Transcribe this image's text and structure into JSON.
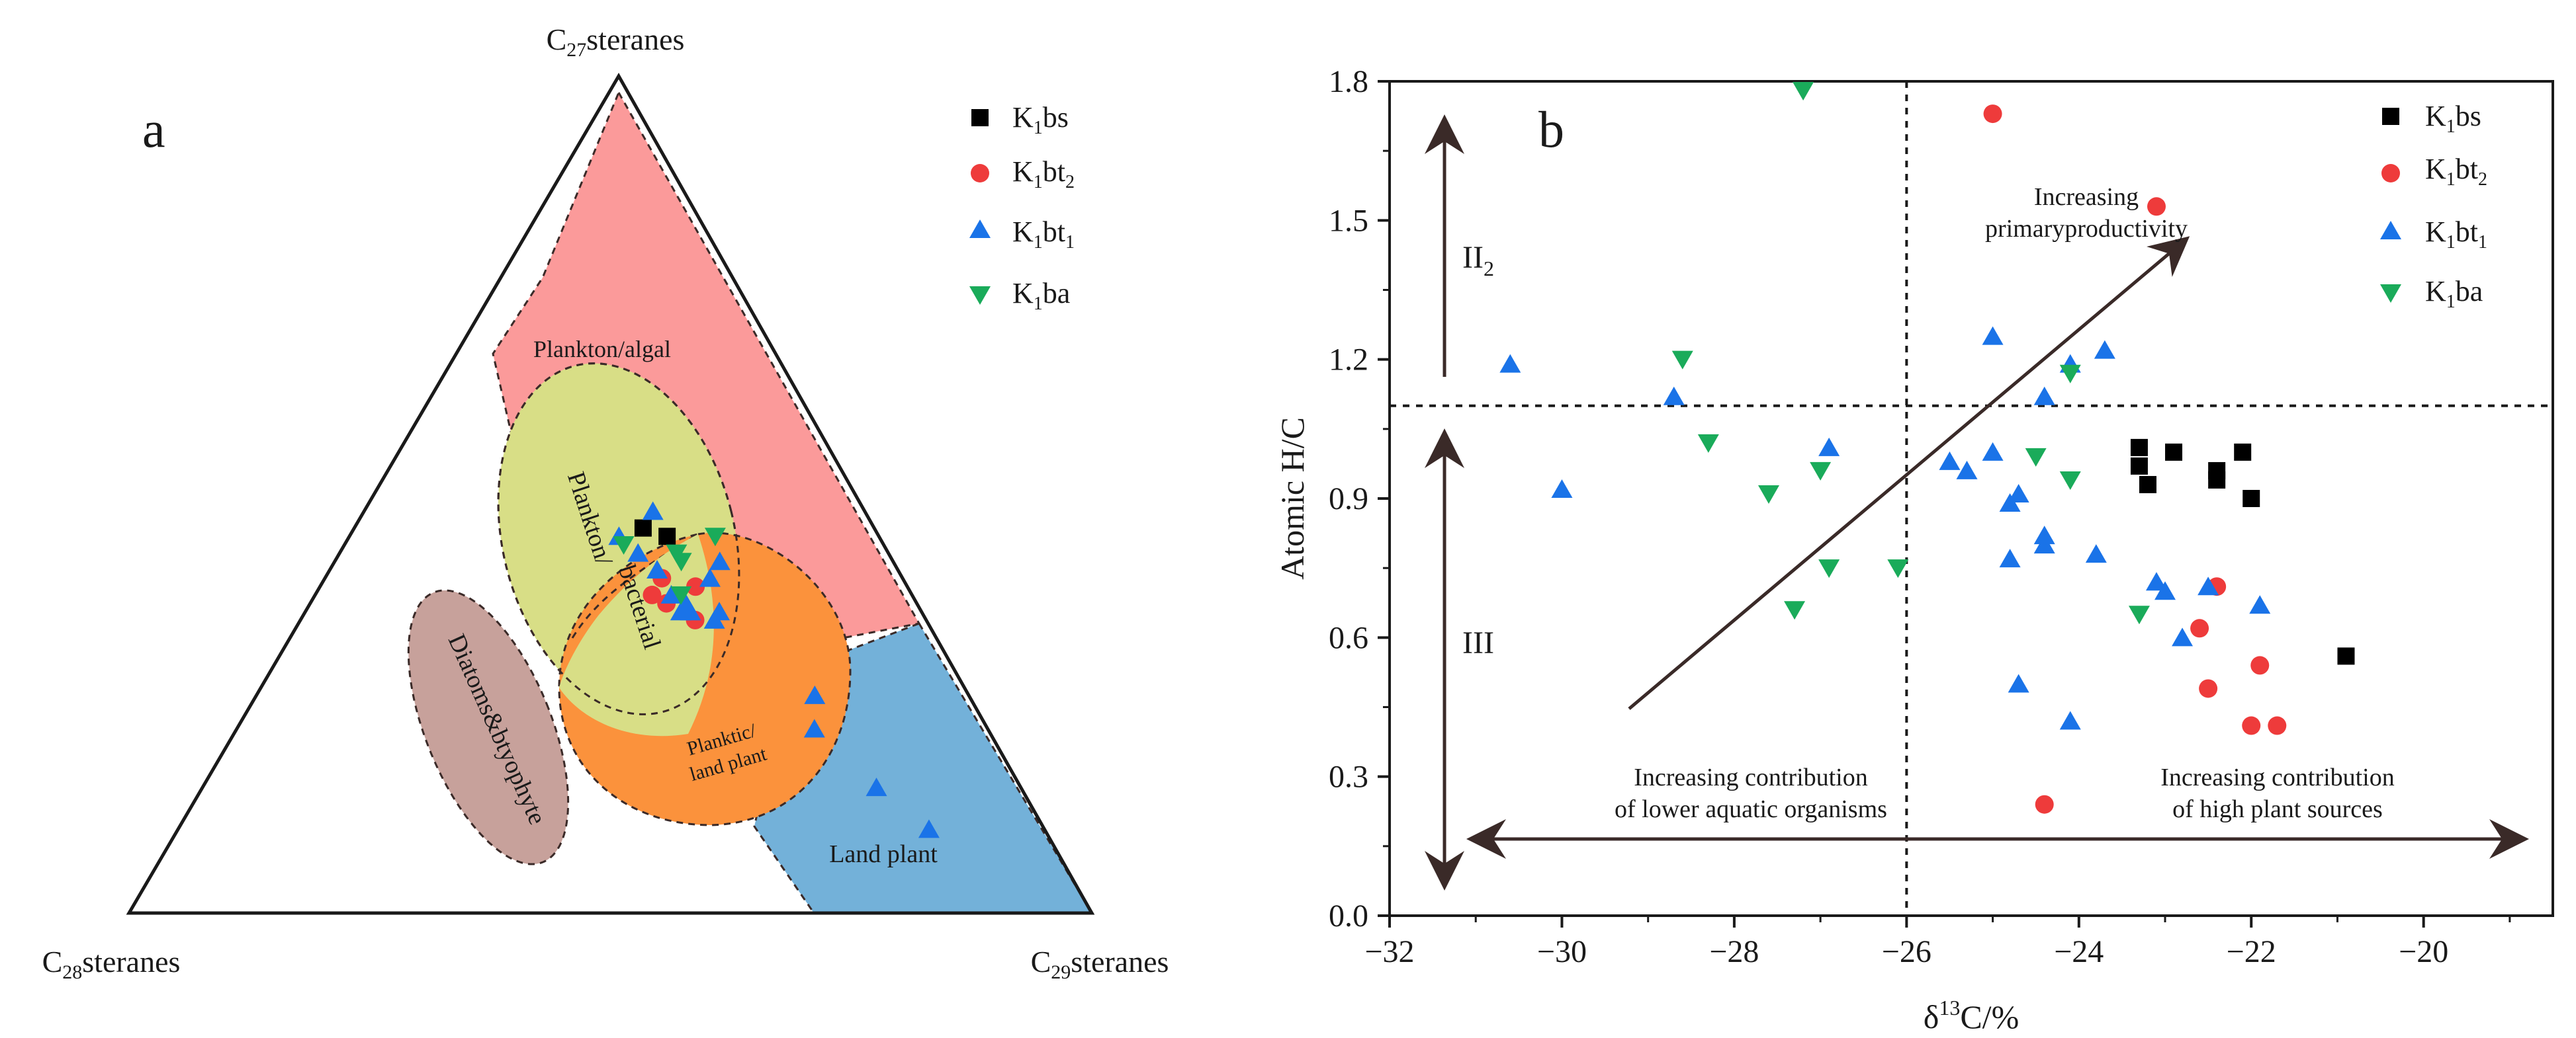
{
  "colors": {
    "K1bs": "#000000",
    "K1bt2": "#ee3b3b",
    "K1bt1": "#1a73e8",
    "K1ba": "#1aab5a",
    "plankton_algal": "#fb9a9a",
    "plankton_bacterial": "#d8de86",
    "planktic_land": "#fb923c",
    "land_plant": "#73b1d9",
    "diatoms": "#c7a19b",
    "axis": "#1a1a1a",
    "arrow": "#3a2a28"
  },
  "chart_data": [
    {
      "type": "ternary",
      "panel_label": "a",
      "vertices": {
        "top": {
          "label": "C",
          "sub": "27",
          "suffix": "steranes"
        },
        "left": {
          "label": "C",
          "sub": "28",
          "suffix": "steranes"
        },
        "right": {
          "label": "C",
          "sub": "29",
          "suffix": "steranes"
        }
      },
      "regions": [
        {
          "name": "Plankton/algal",
          "color_key": "plankton_algal"
        },
        {
          "name": "Plankton/bacterial",
          "color_key": "plankton_bacterial"
        },
        {
          "name": "Planktic/land plant",
          "color_key": "planktic_land"
        },
        {
          "name": "Land plant",
          "color_key": "land_plant"
        },
        {
          "name": "Diatoms&btyophyte",
          "color_key": "diatoms"
        }
      ],
      "region_labels": {
        "plankton_algal": "Plankton/algal",
        "plankton_bacterial_1": "Plankton/",
        "plankton_bacterial_2": "bacterial",
        "planktic_1": "Planktic/",
        "planktic_2": "land plant",
        "land_plant": "Land plant",
        "diatoms": "Diatoms&btyophyte"
      },
      "legend": [
        {
          "base": "K",
          "sub1": "1",
          "text": "bs",
          "sub2": "",
          "marker": "square",
          "color_key": "K1bs"
        },
        {
          "base": "K",
          "sub1": "1",
          "text": "bt",
          "sub2": "2",
          "marker": "circle",
          "color_key": "K1bt2"
        },
        {
          "base": "K",
          "sub1": "1",
          "text": "bt",
          "sub2": "1",
          "marker": "triangle-up",
          "color_key": "K1bt1"
        },
        {
          "base": "K",
          "sub1": "1",
          "text": "ba",
          "sub2": "",
          "marker": "triangle-down",
          "color_key": "K1ba"
        }
      ],
      "series": [
        {
          "name": "K1bs",
          "points": [
            [
              46,
              24,
              30
            ],
            [
              45,
              22,
              33
            ]
          ]
        },
        {
          "name": "K1bt2",
          "points": [
            [
              40,
              25,
              35
            ],
            [
              35,
              24,
              41
            ],
            [
              37,
              26,
              37
            ],
            [
              39,
              22,
              39
            ],
            [
              38,
              27,
              35
            ]
          ]
        },
        {
          "name": "K1bt1",
          "points": [
            [
              48,
              22,
              30
            ],
            [
              45,
              27,
              28
            ],
            [
              43,
              26,
              31
            ],
            [
              41,
              25,
              34
            ],
            [
              38,
              25,
              37
            ],
            [
              36,
              25,
              39
            ],
            [
              37,
              24,
              39
            ],
            [
              36,
              21,
              43
            ],
            [
              40,
              20,
              40
            ],
            [
              42,
              18,
              40
            ],
            [
              35,
              22,
              43
            ],
            [
              36,
              24,
              40
            ],
            [
              26,
              16,
              58
            ],
            [
              22,
              18,
              60
            ],
            [
              15,
              15,
              70
            ],
            [
              10,
              12,
              78
            ]
          ]
        },
        {
          "name": "K1ba",
          "points": [
            [
              45,
              17,
              38
            ],
            [
              42,
              22,
              36
            ],
            [
              44,
              27,
              29
            ],
            [
              38,
              24,
              38
            ],
            [
              43,
              22,
              35
            ]
          ]
        }
      ]
    },
    {
      "type": "scatter",
      "panel_label": "b",
      "xlabel": {
        "pre": "δ",
        "sup": "13",
        "post": "C/%"
      },
      "ylabel": "Atomic H/C",
      "xlim": [
        -32,
        -18.5
      ],
      "ylim": [
        0,
        1.8
      ],
      "xticks": [
        -32,
        -30,
        -28,
        -26,
        -24,
        -22,
        -20
      ],
      "yticks": [
        0,
        0.3,
        0.6,
        0.9,
        1.2,
        1.5,
        1.8
      ],
      "xtick_labels": [
        "−32",
        "−30",
        "−28",
        "−26",
        "−24",
        "−22",
        "−20"
      ],
      "ytick_labels": [
        "0.0",
        "0.3",
        "0.6",
        "0.9",
        "1.2",
        "1.5",
        "1.8"
      ],
      "reference_lines": {
        "x": -26,
        "y": 1.1
      },
      "zone_labels": {
        "upper": "II",
        "upper_sub": "2",
        "lower": "III"
      },
      "annotations": {
        "productivity_1": "Increasing",
        "productivity_2": "primaryproductivity",
        "lower_aquatic_1": "Increasing contribution",
        "lower_aquatic_2": "of lower aquatic organisms",
        "high_plant_1": "Increasing contribution",
        "high_plant_2": "of high plant sources"
      },
      "legend": [
        {
          "base": "K",
          "sub1": "1",
          "text": "bs",
          "sub2": "",
          "marker": "square",
          "color_key": "K1bs"
        },
        {
          "base": "K",
          "sub1": "1",
          "text": "bt",
          "sub2": "2",
          "marker": "circle",
          "color_key": "K1bt2"
        },
        {
          "base": "K",
          "sub1": "1",
          "text": "bt",
          "sub2": "1",
          "marker": "triangle-up",
          "color_key": "K1bt1"
        },
        {
          "base": "K",
          "sub1": "1",
          "text": "ba",
          "sub2": "",
          "marker": "triangle-down",
          "color_key": "K1ba"
        }
      ],
      "series": [
        {
          "name": "K1bs",
          "points": [
            [
              -23.3,
              1.01
            ],
            [
              -23.3,
              0.97
            ],
            [
              -22.9,
              1.0
            ],
            [
              -22.1,
              1.0
            ],
            [
              -23.2,
              0.93
            ],
            [
              -22.4,
              0.96
            ],
            [
              -22.4,
              0.94
            ],
            [
              -22.0,
              0.9
            ],
            [
              -20.9,
              0.56
            ]
          ]
        },
        {
          "name": "K1bt2",
          "points": [
            [
              -25.0,
              1.73
            ],
            [
              -23.1,
              1.53
            ],
            [
              -22.4,
              0.71
            ],
            [
              -22.6,
              0.62
            ],
            [
              -21.9,
              0.54
            ],
            [
              -22.5,
              0.49
            ],
            [
              -22.0,
              0.41
            ],
            [
              -21.7,
              0.41
            ],
            [
              -24.4,
              0.24
            ]
          ]
        },
        {
          "name": "K1bt1",
          "points": [
            [
              -30.6,
              1.19
            ],
            [
              -28.7,
              1.12
            ],
            [
              -30.0,
              0.92
            ],
            [
              -26.9,
              1.01
            ],
            [
              -25.0,
              1.25
            ],
            [
              -24.1,
              1.19
            ],
            [
              -23.7,
              1.22
            ],
            [
              -24.4,
              1.12
            ],
            [
              -25.5,
              0.98
            ],
            [
              -25.3,
              0.96
            ],
            [
              -25.0,
              1.0
            ],
            [
              -24.8,
              0.89
            ],
            [
              -24.7,
              0.91
            ],
            [
              -24.4,
              0.82
            ],
            [
              -24.4,
              0.8
            ],
            [
              -23.8,
              0.78
            ],
            [
              -24.8,
              0.77
            ],
            [
              -23.1,
              0.72
            ],
            [
              -23.0,
              0.7
            ],
            [
              -22.5,
              0.71
            ],
            [
              -21.9,
              0.67
            ],
            [
              -22.8,
              0.6
            ],
            [
              -24.7,
              0.5
            ],
            [
              -24.1,
              0.42
            ]
          ]
        },
        {
          "name": "K1ba",
          "points": [
            [
              -27.2,
              1.78
            ],
            [
              -28.6,
              1.2
            ],
            [
              -24.1,
              1.17
            ],
            [
              -28.3,
              1.02
            ],
            [
              -27.0,
              0.96
            ],
            [
              -27.6,
              0.91
            ],
            [
              -24.5,
              0.99
            ],
            [
              -24.1,
              0.94
            ],
            [
              -26.9,
              0.75
            ],
            [
              -26.1,
              0.75
            ],
            [
              -27.3,
              0.66
            ],
            [
              -23.3,
              0.65
            ]
          ]
        }
      ]
    }
  ]
}
